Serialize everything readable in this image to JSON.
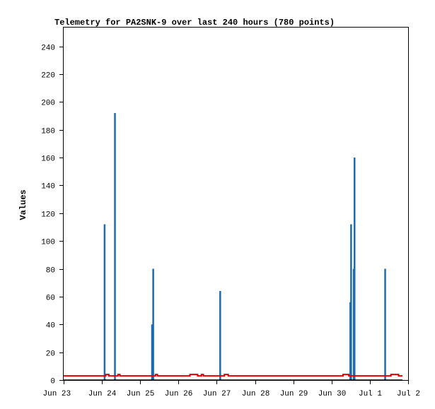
{
  "chart_data": {
    "type": "bar",
    "title": "Telemetry for PA2SNK-9 over last 240 hours (780 points)",
    "xlabel": "",
    "ylabel": "Values",
    "x_ticks": [
      "Jun 23",
      "Jun 24",
      "Jun 25",
      "Jun 26",
      "Jun 27",
      "Jun 28",
      "Jun 29",
      "Jun 30",
      "Jul 1",
      "Jul 2"
    ],
    "xlim": [
      0,
      9
    ],
    "y_ticks": [
      0,
      20,
      40,
      60,
      80,
      100,
      120,
      140,
      160,
      180,
      200,
      220,
      240
    ],
    "ylim": [
      0,
      254
    ],
    "grid": false,
    "series": [
      {
        "color": "#1a6bb8",
        "style": "spikes",
        "points": [
          {
            "x": 1.07,
            "y": 112
          },
          {
            "x": 1.34,
            "y": 192
          },
          {
            "x": 2.31,
            "y": 40
          },
          {
            "x": 2.34,
            "y": 80
          },
          {
            "x": 4.09,
            "y": 64
          },
          {
            "x": 7.49,
            "y": 56
          },
          {
            "x": 7.51,
            "y": 112
          },
          {
            "x": 7.58,
            "y": 80
          },
          {
            "x": 7.6,
            "y": 160
          },
          {
            "x": 8.4,
            "y": 80
          }
        ]
      },
      {
        "color": "#e00000",
        "style": "line",
        "points": [
          {
            "x": 0.0,
            "y": 3
          },
          {
            "x": 1.05,
            "y": 3
          },
          {
            "x": 1.1,
            "y": 4
          },
          {
            "x": 1.18,
            "y": 3
          },
          {
            "x": 1.38,
            "y": 3
          },
          {
            "x": 1.42,
            "y": 4
          },
          {
            "x": 1.47,
            "y": 3
          },
          {
            "x": 2.35,
            "y": 3
          },
          {
            "x": 2.4,
            "y": 4
          },
          {
            "x": 2.45,
            "y": 3
          },
          {
            "x": 3.25,
            "y": 3
          },
          {
            "x": 3.3,
            "y": 4
          },
          {
            "x": 3.45,
            "y": 4
          },
          {
            "x": 3.5,
            "y": 3
          },
          {
            "x": 3.6,
            "y": 4
          },
          {
            "x": 3.65,
            "y": 3
          },
          {
            "x": 4.15,
            "y": 3
          },
          {
            "x": 4.2,
            "y": 4
          },
          {
            "x": 4.3,
            "y": 3
          },
          {
            "x": 7.25,
            "y": 3
          },
          {
            "x": 7.3,
            "y": 4
          },
          {
            "x": 7.4,
            "y": 4
          },
          {
            "x": 7.45,
            "y": 3
          },
          {
            "x": 8.45,
            "y": 3
          },
          {
            "x": 8.55,
            "y": 4
          },
          {
            "x": 8.7,
            "y": 4
          },
          {
            "x": 8.75,
            "y": 3
          },
          {
            "x": 8.85,
            "y": 3
          }
        ]
      },
      {
        "color": "#000000",
        "style": "line",
        "points": [
          {
            "x": 0.0,
            "y": 0
          },
          {
            "x": 8.85,
            "y": 0
          }
        ]
      }
    ]
  }
}
